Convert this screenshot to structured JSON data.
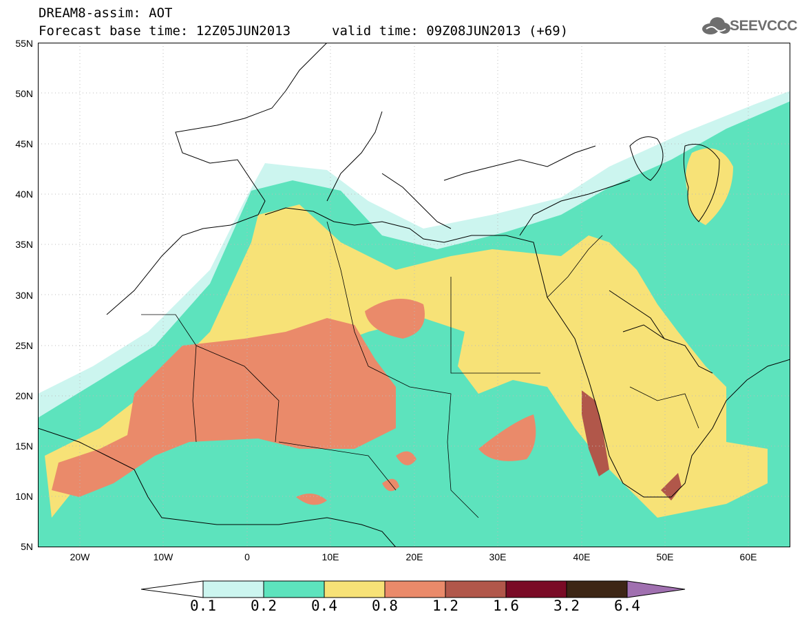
{
  "header": {
    "title_line1": "DREAM8-assim: AOT",
    "title_line2": "Forecast base time: 12Z05JUN2013",
    "valid_time": "valid time: 09Z08JUN2013 (+69)",
    "logo_text": "SEEVCCC"
  },
  "map": {
    "lat_labels": [
      "55N",
      "50N",
      "45N",
      "40N",
      "35N",
      "30N",
      "25N",
      "20N",
      "15N",
      "10N",
      "5N"
    ],
    "lon_labels": [
      "20W",
      "10W",
      "0",
      "10E",
      "20E",
      "30E",
      "40E",
      "50E",
      "60E"
    ],
    "lat_range": [
      5,
      55
    ],
    "lon_range": [
      -25,
      65
    ]
  },
  "colorbar": {
    "levels": [
      "0.1",
      "0.2",
      "0.4",
      "0.8",
      "1.2",
      "1.6",
      "3.2",
      "6.4"
    ],
    "colors": [
      "#ffffff",
      "#ccf5ef",
      "#5de3bd",
      "#f7e277",
      "#ea8a6a",
      "#b1574a",
      "#7a0b26",
      "#3d2615",
      "#a070b0"
    ]
  }
}
